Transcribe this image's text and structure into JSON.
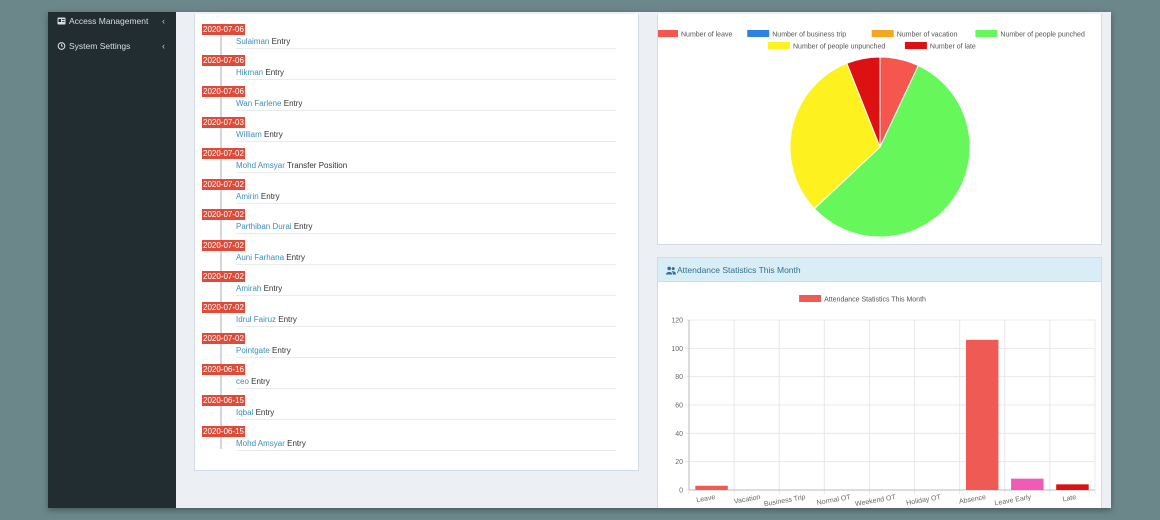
{
  "sidebar": {
    "items": [
      {
        "label": "Access Management",
        "icon": "id-card-icon"
      },
      {
        "label": "System Settings",
        "icon": "clock-icon"
      }
    ],
    "chevron": "‹"
  },
  "timeline": [
    {
      "date": "2020-07-06",
      "name": "Sulaiman",
      "action": "Entry"
    },
    {
      "date": "2020-07-06",
      "name": "Hikman",
      "action": "Entry"
    },
    {
      "date": "2020-07-06",
      "name": "Wan Farlene",
      "action": "Entry"
    },
    {
      "date": "2020-07-03",
      "name": "William",
      "action": "Entry"
    },
    {
      "date": "2020-07-02",
      "name": "Mohd Amsyar",
      "action": "Transfer Position"
    },
    {
      "date": "2020-07-02",
      "name": "Amirin",
      "action": "Entry"
    },
    {
      "date": "2020-07-02",
      "name": "Parthiban Durai",
      "action": "Entry"
    },
    {
      "date": "2020-07-02",
      "name": "Auni Farhana",
      "action": "Entry"
    },
    {
      "date": "2020-07-02",
      "name": "Amirah",
      "action": "Entry"
    },
    {
      "date": "2020-07-02",
      "name": "Idrul Fairuz",
      "action": "Entry"
    },
    {
      "date": "2020-07-02",
      "name": "Pointgate",
      "action": "Entry"
    },
    {
      "date": "2020-06-16",
      "name": "ceo",
      "action": "Entry"
    },
    {
      "date": "2020-06-15",
      "name": "Iqbal",
      "action": "Entry"
    },
    {
      "date": "2020-06-15",
      "name": "Mohd Amsyar",
      "action": "Entry"
    }
  ],
  "attendance_panel": {
    "title": "Attendance Statistics This Month",
    "icon": "users-icon"
  },
  "chart_data": [
    {
      "type": "pie",
      "legend_position": "top",
      "slices": [
        {
          "label": "Number of leave",
          "value": 7,
          "color": "#f5574e"
        },
        {
          "label": "Number of business trip",
          "value": 0,
          "color": "#2f80e6"
        },
        {
          "label": "Number of vacation",
          "value": 0,
          "color": "#f5a623"
        },
        {
          "label": "Number of people punched",
          "value": 56,
          "color": "#66f85a"
        },
        {
          "label": "Number of people unpunched",
          "value": 31,
          "color": "#fdf21f"
        },
        {
          "label": "Number of late",
          "value": 6,
          "color": "#dd1111"
        }
      ]
    },
    {
      "type": "bar",
      "legend_position": "top",
      "categories": [
        "Leave",
        "Vacation",
        "Business Trip",
        "Normal OT",
        "Weekend OT",
        "Holiday OT",
        "Absence",
        "Leave Early",
        "Late"
      ],
      "series": [
        {
          "name": "Attendance Statistics This Month",
          "values": [
            3,
            0,
            0,
            0,
            0,
            0,
            106,
            8,
            4
          ],
          "colors": [
            "#f05a55",
            "#f05a55",
            "#f05a55",
            "#f05a55",
            "#f05a55",
            "#f05a55",
            "#f05a55",
            "#f15ab6",
            "#dd1111"
          ]
        }
      ],
      "ylim": [
        0,
        120
      ],
      "yticks": [
        0,
        20,
        40,
        60,
        80,
        100,
        120
      ],
      "grid": true
    }
  ]
}
